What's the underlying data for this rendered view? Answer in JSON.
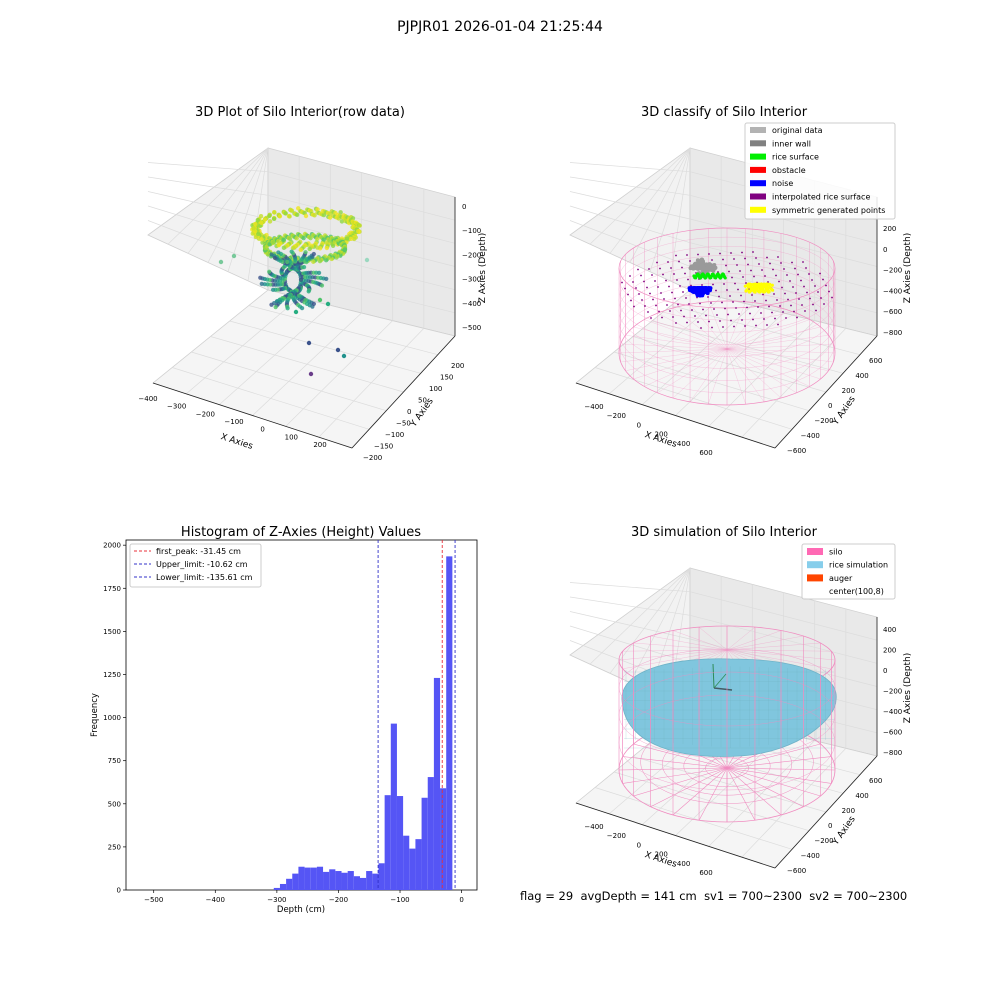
{
  "figure": {
    "suptitle": "PJPJR01 2026-01-04 21:25:44",
    "footer": {
      "flag": "flag = 29",
      "avg_depth": "avgDepth = 141 cm",
      "sv1": "sv1 = 700~2300",
      "sv2": "sv2 = 700~2300"
    }
  },
  "colors": {
    "histogram_bar": "#5555f5",
    "first_peak_line": "#e8313b",
    "limit_lines": "#3030c8",
    "silo_wire": "#f08cc0",
    "rice_surface": "#80c6de",
    "noise": "#0000ff",
    "symmetric": "#ffff00",
    "rice": "#00ee00",
    "auger": "#ff4500"
  },
  "chart_data": [
    {
      "type": "scatter",
      "subtype": "3d",
      "title": "3D Plot of Silo Interior(row data)",
      "xlabel": "X Axies",
      "ylabel": "Y Axies",
      "zlabel": "Z Axies (Depth)",
      "x_ticks": [
        "−400",
        "−300",
        "−200",
        "−100",
        "0",
        "100",
        "200"
      ],
      "y_ticks": [
        "−200",
        "−150",
        "−100",
        "−50",
        "0",
        "50",
        "100",
        "150",
        "200"
      ],
      "z_ticks": [
        "0",
        "−100",
        "−200",
        "−300",
        "−400",
        "−500"
      ],
      "colormap": "viridis",
      "grid": true
    },
    {
      "type": "scatter",
      "subtype": "3d",
      "title": "3D classify of Silo Interior",
      "xlabel": "X Axies",
      "ylabel": "Y Axies",
      "zlabel": "Z Axies (Depth)",
      "x_ticks": [
        "−400",
        "−200",
        "0",
        "200",
        "400",
        "600"
      ],
      "y_ticks": [
        "−600",
        "−400",
        "−200",
        "0",
        "200",
        "400",
        "600"
      ],
      "z_ticks": [
        "200",
        "0",
        "−200",
        "−400",
        "−600",
        "−800"
      ],
      "legend": [
        {
          "label": "original data",
          "color": "#b3b3b3"
        },
        {
          "label": "inner wall",
          "color": "#808080"
        },
        {
          "label": "rice surface",
          "color": "#00ee00"
        },
        {
          "label": "obstacle",
          "color": "#ff0000"
        },
        {
          "label": "noise",
          "color": "#0000ff"
        },
        {
          "label": "interpolated rice surface",
          "color": "#800080"
        },
        {
          "label": "symmetric generated points",
          "color": "#ffff00"
        }
      ],
      "legend_position": "top-right",
      "grid": true
    },
    {
      "type": "bar",
      "subtype": "histogram",
      "title": "Histogram of Z-Axies (Height) Values",
      "xlabel": "Depth (cm)",
      "ylabel": "Frequency",
      "xlim": [
        -545,
        25
      ],
      "ylim": [
        0,
        2030
      ],
      "x_ticks": [
        -500,
        -400,
        -300,
        -200,
        -100,
        0
      ],
      "x_tick_labels": [
        "−500",
        "−400",
        "−300",
        "−200",
        "−100",
        "0"
      ],
      "y_ticks": [
        0,
        250,
        500,
        750,
        1000,
        1250,
        1500,
        1750,
        2000
      ],
      "bin_width": 10,
      "bins": [
        {
          "x0": -305,
          "count": 12
        },
        {
          "x0": -295,
          "count": 35
        },
        {
          "x0": -285,
          "count": 65
        },
        {
          "x0": -275,
          "count": 95
        },
        {
          "x0": -265,
          "count": 135
        },
        {
          "x0": -255,
          "count": 130
        },
        {
          "x0": -245,
          "count": 130
        },
        {
          "x0": -235,
          "count": 135
        },
        {
          "x0": -225,
          "count": 105
        },
        {
          "x0": -215,
          "count": 120
        },
        {
          "x0": -205,
          "count": 110
        },
        {
          "x0": -195,
          "count": 100
        },
        {
          "x0": -185,
          "count": 110
        },
        {
          "x0": -175,
          "count": 80
        },
        {
          "x0": -165,
          "count": 70
        },
        {
          "x0": -155,
          "count": 110
        },
        {
          "x0": -145,
          "count": 95
        },
        {
          "x0": -135,
          "count": 155
        },
        {
          "x0": -125,
          "count": 550
        },
        {
          "x0": -115,
          "count": 965
        },
        {
          "x0": -105,
          "count": 545
        },
        {
          "x0": -95,
          "count": 315
        },
        {
          "x0": -85,
          "count": 240
        },
        {
          "x0": -75,
          "count": 295
        },
        {
          "x0": -65,
          "count": 535
        },
        {
          "x0": -55,
          "count": 655
        },
        {
          "x0": -45,
          "count": 1230
        },
        {
          "x0": -35,
          "count": 590
        },
        {
          "x0": -25,
          "count": 1935
        }
      ],
      "vlines": [
        {
          "label": "first_peak: -31.45 cm",
          "x": -31.45,
          "color": "#e8313b"
        },
        {
          "label": "Upper_limit: -10.62 cm",
          "x": -10.62,
          "color": "#3030c8"
        },
        {
          "label": "Lower_limit: -135.61 cm",
          "x": -135.61,
          "color": "#3030c8"
        }
      ],
      "legend_position": "top-left",
      "grid": false
    },
    {
      "type": "area",
      "subtype": "3d-surface",
      "title": "3D simulation of Silo Interior",
      "xlabel": "X Axies",
      "ylabel": "Y Axies",
      "zlabel": "Z Axies (Depth)",
      "x_ticks": [
        "−400",
        "−200",
        "0",
        "200",
        "400",
        "600"
      ],
      "y_ticks": [
        "−600",
        "−400",
        "−200",
        "0",
        "200",
        "400",
        "600"
      ],
      "z_ticks": [
        "400",
        "200",
        "0",
        "−200",
        "−400",
        "−600",
        "−800"
      ],
      "legend": [
        {
          "label": "silo",
          "color": "#ff69b4"
        },
        {
          "label": "rice simulation",
          "color": "#87ceeb"
        },
        {
          "label": "auger",
          "color": "#ff4500"
        },
        {
          "label": "center(100,8)",
          "color": ""
        }
      ],
      "legend_position": "top-right",
      "grid": true
    }
  ]
}
